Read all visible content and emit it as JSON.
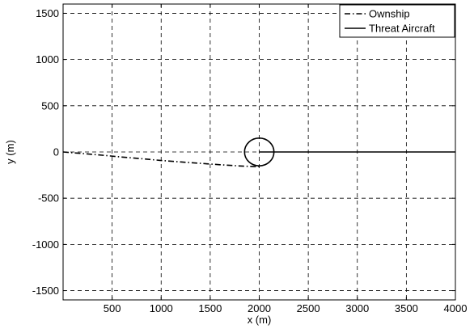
{
  "chart_data": {
    "type": "line",
    "title": "",
    "xlabel": "x (m)",
    "ylabel": "y (m)",
    "xlim": [
      0,
      4000
    ],
    "ylim": [
      -1600,
      1600
    ],
    "xticks": [
      500,
      1000,
      1500,
      2000,
      2500,
      3000,
      3500,
      4000
    ],
    "yticks": [
      -1500,
      -1000,
      -500,
      0,
      500,
      1000,
      1500
    ],
    "grid": true,
    "legend_position": "top-right",
    "series": [
      {
        "name": "Ownship",
        "style": "dash-dot",
        "color": "#000000",
        "x": [
          0,
          200,
          400,
          600,
          800,
          1000,
          1200,
          1400,
          1600,
          1800,
          1950,
          2000
        ],
        "y": [
          0,
          -17,
          -35,
          -55,
          -73,
          -92,
          -108,
          -123,
          -138,
          -151,
          -158,
          -160
        ]
      },
      {
        "name": "Threat Aircraft",
        "style": "solid",
        "color": "#000000",
        "x": [
          2000,
          2500,
          3000,
          3500,
          4000
        ],
        "y": [
          0,
          0,
          0,
          0,
          0
        ]
      }
    ],
    "annotations": [
      {
        "type": "circle",
        "cx": 2000,
        "cy": 0,
        "r": 150
      }
    ]
  }
}
